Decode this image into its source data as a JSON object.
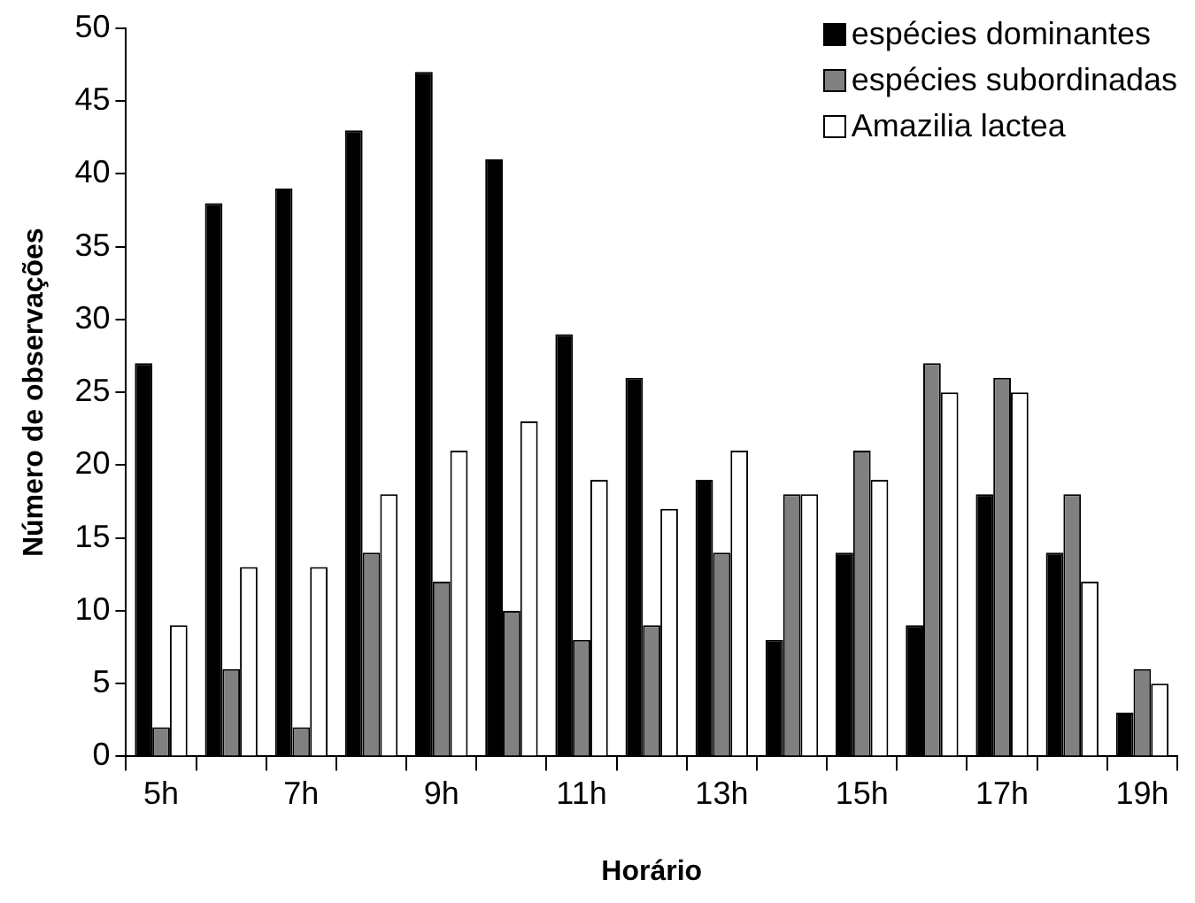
{
  "chart_data": {
    "type": "bar",
    "xlabel": "Horário",
    "ylabel": "Número de observações",
    "categories": [
      "5h",
      null,
      "7h",
      null,
      "9h",
      null,
      "11h",
      null,
      "13h",
      null,
      "15h",
      null,
      "17h",
      null,
      "19h"
    ],
    "series": [
      {
        "name": "espécies dominantes",
        "color": "#000000",
        "values": [
          27,
          38,
          39,
          43,
          47,
          41,
          29,
          26,
          19,
          8,
          14,
          9,
          18,
          14,
          3
        ]
      },
      {
        "name": "espécies subordinadas",
        "color": "#808080",
        "values": [
          2,
          6,
          2,
          14,
          12,
          10,
          8,
          9,
          14,
          18,
          21,
          27,
          26,
          18,
          6
        ]
      },
      {
        "name": "Amazilia lactea",
        "color": "#ffffff",
        "values": [
          9,
          13,
          13,
          18,
          21,
          23,
          19,
          17,
          21,
          18,
          19,
          25,
          25,
          12,
          5
        ]
      }
    ],
    "ylim": [
      0,
      50
    ],
    "yticks": [
      0,
      5,
      10,
      15,
      20,
      25,
      30,
      35,
      40,
      45,
      50
    ],
    "grid": false,
    "legend": "top right"
  }
}
